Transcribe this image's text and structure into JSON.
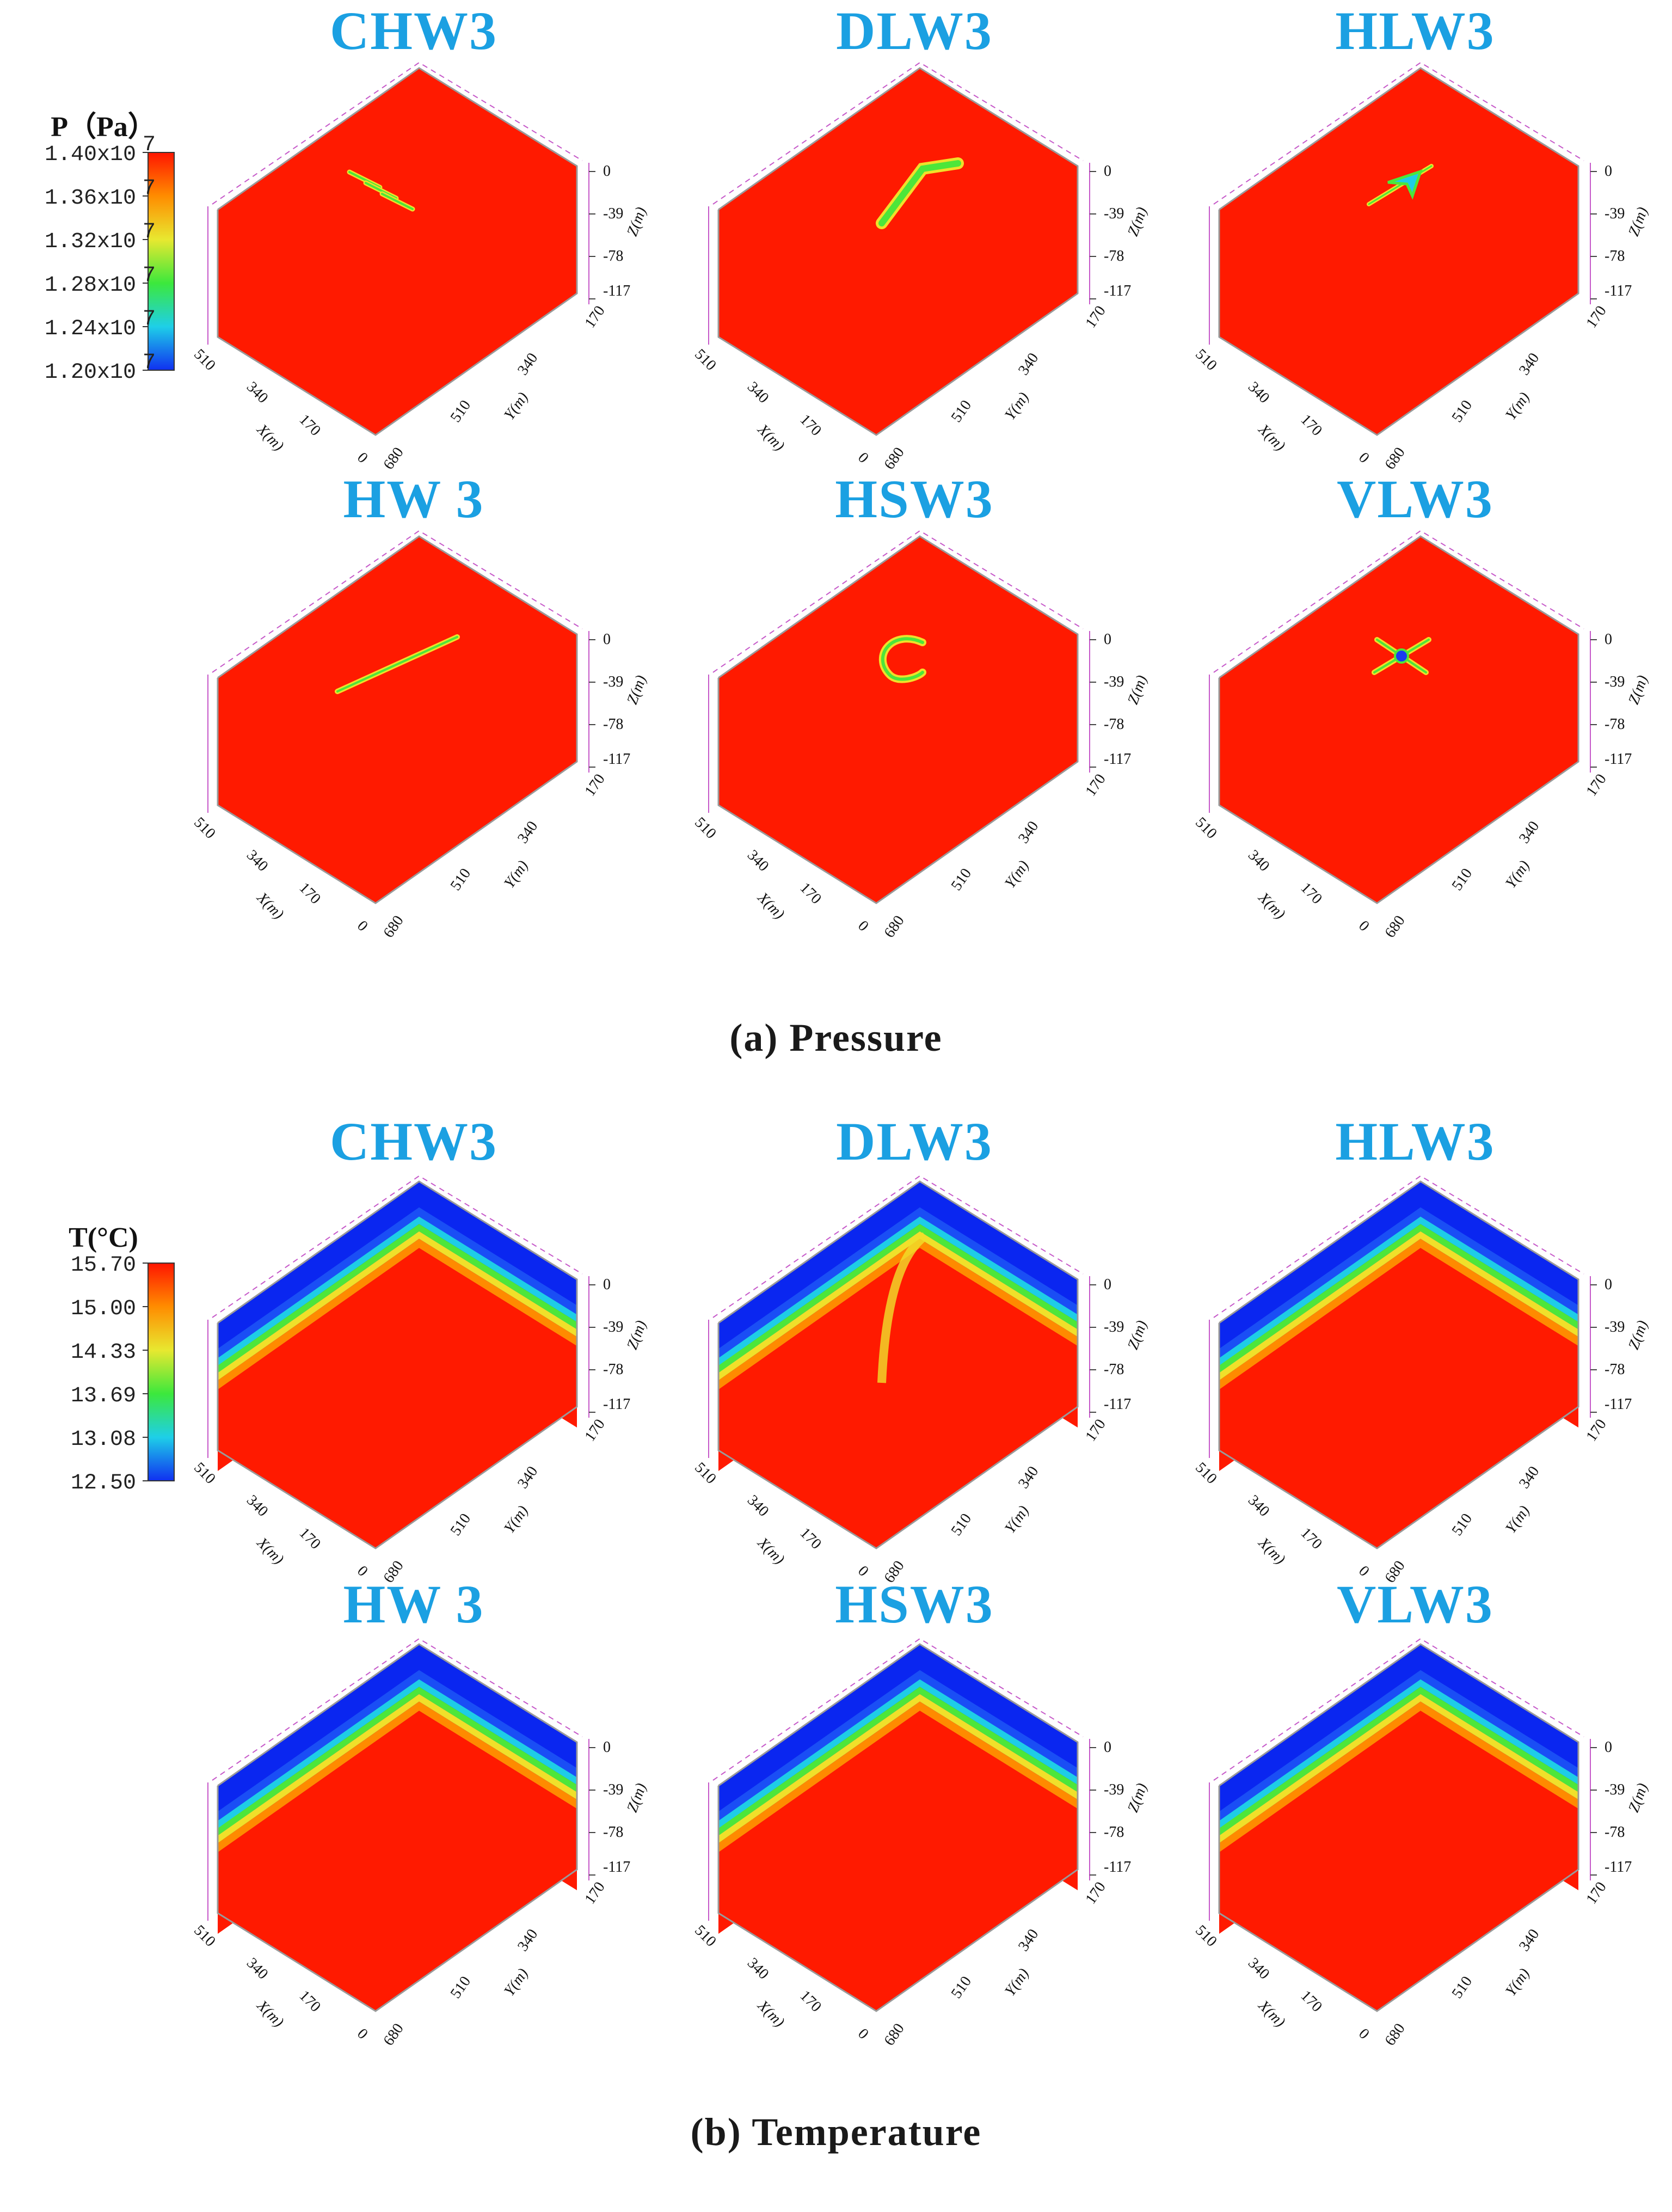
{
  "sections": [
    {
      "id": "pressure",
      "caption": "(a) Pressure",
      "legend": {
        "title": "P（Pa）",
        "ticks": [
          {
            "mantissa": "1.40x10",
            "exp": "7"
          },
          {
            "mantissa": "1.36x10",
            "exp": "7"
          },
          {
            "mantissa": "1.32x10",
            "exp": "7"
          },
          {
            "mantissa": "1.28x10",
            "exp": "7"
          },
          {
            "mantissa": "1.24x10",
            "exp": "7"
          },
          {
            "mantissa": "1.20x10",
            "exp": "7"
          }
        ]
      },
      "panels": [
        {
          "title": "CHW3",
          "well": "chw"
        },
        {
          "title": "DLW3",
          "well": "dlw"
        },
        {
          "title": "HLW3",
          "well": "hlw"
        },
        {
          "title": "HW 3",
          "well": "hw"
        },
        {
          "title": "HSW3",
          "well": "hsw"
        },
        {
          "title": "VLW3",
          "well": "vlw"
        }
      ]
    },
    {
      "id": "temperature",
      "caption": "(b) Temperature",
      "legend": {
        "title": "T(°C)",
        "ticks": [
          {
            "mantissa": "15.70",
            "exp": ""
          },
          {
            "mantissa": "15.00",
            "exp": ""
          },
          {
            "mantissa": "14.33",
            "exp": ""
          },
          {
            "mantissa": "13.69",
            "exp": ""
          },
          {
            "mantissa": "13.08",
            "exp": ""
          },
          {
            "mantissa": "12.50",
            "exp": ""
          }
        ]
      },
      "panels": [
        {
          "title": "CHW3",
          "well": "chw"
        },
        {
          "title": "DLW3",
          "well": "dlw"
        },
        {
          "title": "HLW3",
          "well": "hlw"
        },
        {
          "title": "HW 3",
          "well": "hw"
        },
        {
          "title": "HSW3",
          "well": "hsw"
        },
        {
          "title": "VLW3",
          "well": "vlw"
        }
      ]
    }
  ],
  "axes": {
    "x_label": "X(m)",
    "y_label": "Y(m)",
    "z_label": "Z(m)",
    "x_ticks": [
      "510",
      "340",
      "170",
      "0"
    ],
    "y_ticks": [
      "680",
      "510",
      "340",
      "170"
    ],
    "z_ticks": [
      "0",
      "-39",
      "-78",
      "-117"
    ]
  },
  "colors": {
    "title": "#1ba0e2",
    "field_red": "#ff1a00",
    "cold_blue": "#0a26f0",
    "band_cyan": "#1ecde6",
    "band_green": "#4de63a",
    "band_yellow": "#f0e02a",
    "band_orange": "#ff8a00",
    "colormap": [
      "#ff1500",
      "#ff8c00",
      "#e8e830",
      "#3ce83c",
      "#1ecfe8",
      "#1030f0"
    ]
  }
}
